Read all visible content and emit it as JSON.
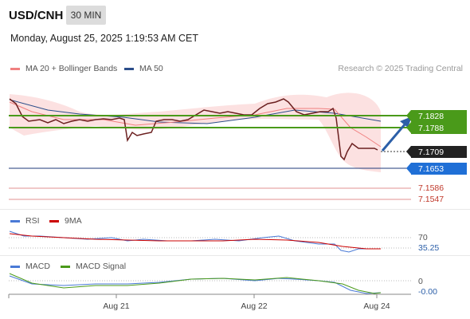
{
  "header": {
    "symbol": "USD/CNH",
    "timeframe": "30 MIN",
    "datetime": "Monday, August 25, 2025 1:19:53 AM CET"
  },
  "legend_main": [
    {
      "label": "MA 20 + Bollinger Bands",
      "color": "#f08080"
    },
    {
      "label": "MA 50",
      "color": "#2c4e8a"
    }
  ],
  "credit": "Research © 2025 Trading Central",
  "price_tags": [
    {
      "label": "7.1828",
      "color": "#4a9a1a"
    },
    {
      "label": "7.1788",
      "color": "#4a9a1a"
    },
    {
      "label": "7.1709",
      "color": "#222222"
    },
    {
      "label": "7.1653",
      "color": "#1f6fd6"
    }
  ],
  "levels": [
    {
      "label": "7.1586",
      "color": "#c0392b"
    },
    {
      "label": "7.1547",
      "color": "#c0392b"
    }
  ],
  "rsi": {
    "legend": [
      {
        "label": "RSI",
        "color": "#4a7ad6"
      },
      {
        "label": "9MA",
        "color": "#cc0000"
      }
    ],
    "levels": [
      "70",
      "35.25"
    ]
  },
  "macd": {
    "legend": [
      {
        "label": "MACD",
        "color": "#4a7ad6"
      },
      {
        "label": "MACD Signal",
        "color": "#4a9a1a"
      }
    ],
    "levels": [
      "0",
      "-0.00"
    ]
  },
  "x_axis": [
    "Aug 21",
    "Aug 22",
    "Aug 24"
  ],
  "chart_data": {
    "type": "line",
    "series": [
      {
        "name": "MA 20 + Bollinger Bands",
        "values": [
          7.179,
          7.1782,
          7.1776,
          7.178,
          7.1782,
          7.1786,
          7.1788,
          7.179,
          7.1795,
          7.18,
          7.1802,
          7.1765,
          7.173
        ]
      },
      {
        "name": "MA 50",
        "values": [
          7.1805,
          7.18,
          7.1795,
          7.179,
          7.1787,
          7.1786,
          7.1787,
          7.179,
          7.1795,
          7.1797,
          7.179,
          7.1782,
          7.1775
        ]
      }
    ],
    "price": [
      7.182,
      7.1795,
      7.1782,
      7.1784,
      7.1781,
      7.1785,
      7.1778,
      7.1785,
      7.1792,
      7.179,
      7.18,
      7.1815,
      7.1805,
      7.1795,
      7.1805,
      7.166,
      7.172,
      7.1709
    ],
    "resistance": [
      7.1828,
      7.1788
    ],
    "support": [
      7.1653,
      7.1586,
      7.1547
    ],
    "last_price": 7.1709,
    "ylim": [
      7.153,
      7.185
    ],
    "xlabel": "",
    "ylabel": ""
  }
}
